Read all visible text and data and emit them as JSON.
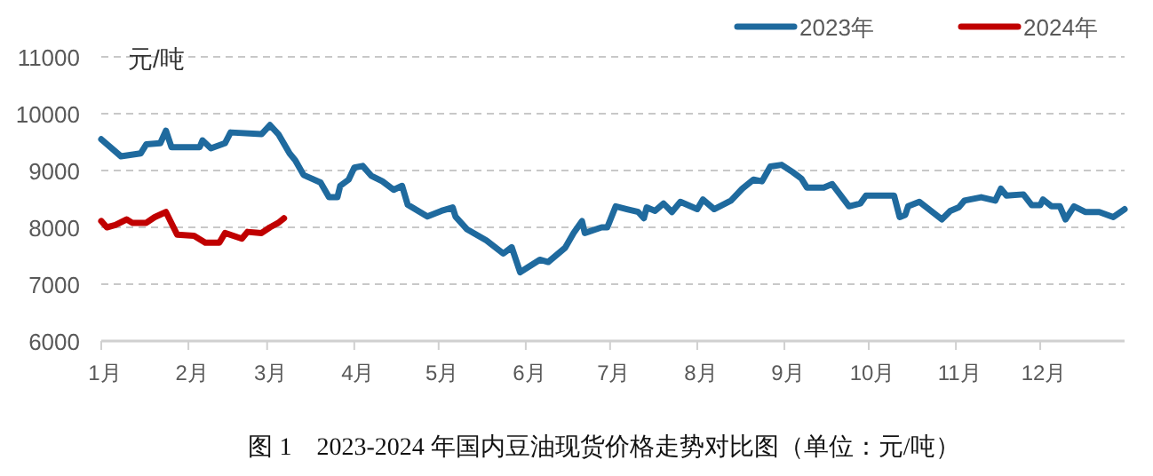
{
  "chart_data": {
    "type": "line",
    "title": "图 1　2023-2024 年国内豆油现货价格走势对比图（单位：元/吨）",
    "ylabel": "元/吨",
    "xlim": [
      "--01-01",
      "--12-31"
    ],
    "xticks": [
      {
        "value": "--01-01",
        "label": "1月"
      },
      {
        "value": "--02-01",
        "label": "2月"
      },
      {
        "value": "--03-01",
        "label": "3月"
      },
      {
        "value": "--04-01",
        "label": "4月"
      },
      {
        "value": "--05-01",
        "label": "5月"
      },
      {
        "value": "--06-01",
        "label": "6月"
      },
      {
        "value": "--07-01",
        "label": "7月"
      },
      {
        "value": "--08-01",
        "label": "8月"
      },
      {
        "value": "--09-01",
        "label": "9月"
      },
      {
        "value": "--10-01",
        "label": "10月"
      },
      {
        "value": "--11-01",
        "label": "11月"
      },
      {
        "value": "--12-01",
        "label": "12月"
      }
    ],
    "ylim": [
      6000,
      11000
    ],
    "yticks": [
      6000,
      7000,
      8000,
      9000,
      10000,
      11000
    ],
    "grid": "y",
    "legend": "top right",
    "series": [
      {
        "name": "2023年",
        "color": "#1f6a9e",
        "x": [
          "--01-01",
          "--01-08",
          "--01-15",
          "--01-17",
          "--01-22",
          "--01-24",
          "--01-26",
          "--02-05",
          "--02-06",
          "--02-09",
          "--02-14",
          "--02-16",
          "--02-27",
          "--03-02",
          "--03-05",
          "--03-09",
          "--03-11",
          "--03-14",
          "--03-20",
          "--03-23",
          "--03-26",
          "--03-27",
          "--03-30",
          "--04-01",
          "--04-04",
          "--04-07",
          "--04-11",
          "--04-15",
          "--04-18",
          "--04-20",
          "--04-27",
          "--05-02",
          "--05-06",
          "--05-07",
          "--05-11",
          "--05-18",
          "--05-24",
          "--05-27",
          "--05-30",
          "--06-06",
          "--06-09",
          "--06-15",
          "--06-18",
          "--06-21",
          "--06-22",
          "--06-28",
          "--06-30",
          "--07-03",
          "--07-07",
          "--07-11",
          "--07-13",
          "--07-14",
          "--07-17",
          "--07-20",
          "--07-23",
          "--07-26",
          "--08-01",
          "--08-03",
          "--08-07",
          "--08-13",
          "--08-17",
          "--08-21",
          "--08-24",
          "--08-27",
          "--08-31",
          "--09-04",
          "--09-07",
          "--09-09",
          "--09-15",
          "--09-18",
          "--09-24",
          "--09-28",
          "--09-30",
          "--10-10",
          "--10-12",
          "--10-14",
          "--10-15",
          "--10-19",
          "--10-27",
          "--10-30",
          "--11-02",
          "--11-04",
          "--11-10",
          "--11-15",
          "--11-17",
          "--11-19",
          "--11-25",
          "--11-28",
          "--12-01",
          "--12-02",
          "--12-05",
          "--12-08",
          "--12-10",
          "--12-13",
          "--12-17",
          "--12-22",
          "--12-27",
          "--12-31"
        ],
        "values": [
          9550,
          9250,
          9300,
          9460,
          9480,
          9700,
          9410,
          9410,
          9530,
          9390,
          9480,
          9670,
          9640,
          9800,
          9640,
          9300,
          9180,
          8920,
          8790,
          8530,
          8530,
          8730,
          8840,
          9050,
          9080,
          8910,
          8810,
          8660,
          8730,
          8400,
          8190,
          8290,
          8350,
          8190,
          7970,
          7770,
          7540,
          7650,
          7210,
          7430,
          7390,
          7640,
          7900,
          8110,
          7900,
          8000,
          8000,
          8370,
          8320,
          8270,
          8160,
          8350,
          8290,
          8420,
          8270,
          8450,
          8320,
          8490,
          8320,
          8470,
          8680,
          8840,
          8810,
          9070,
          9100,
          8970,
          8860,
          8700,
          8700,
          8760,
          8370,
          8420,
          8560,
          8560,
          8180,
          8220,
          8370,
          8450,
          8140,
          8290,
          8350,
          8470,
          8530,
          8470,
          8680,
          8560,
          8580,
          8390,
          8390,
          8490,
          8370,
          8370,
          8140,
          8370,
          8270,
          8270,
          8180,
          8320
        ]
      },
      {
        "name": "2024年",
        "color": "#c00000",
        "x": [
          "--01-01",
          "--01-03",
          "--01-06",
          "--01-10",
          "--01-12",
          "--01-17",
          "--01-20",
          "--01-24",
          "--01-28",
          "--02-03",
          "--02-07",
          "--02-12",
          "--02-14",
          "--02-20",
          "--02-22",
          "--02-27",
          "--03-02",
          "--03-05",
          "--03-07"
        ],
        "values": [
          8110,
          8000,
          8040,
          8140,
          8080,
          8080,
          8180,
          8270,
          7870,
          7850,
          7730,
          7730,
          7900,
          7800,
          7920,
          7900,
          8000,
          8080,
          8160
        ]
      }
    ]
  }
}
